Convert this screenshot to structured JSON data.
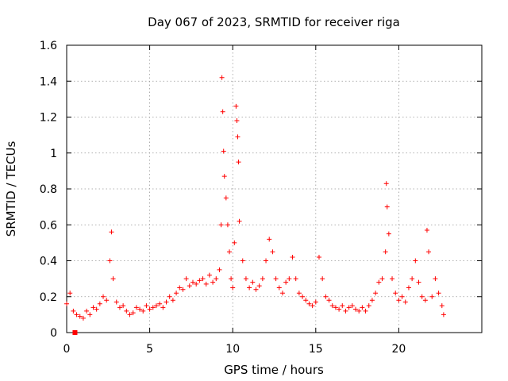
{
  "chart_data": {
    "type": "scatter",
    "title": "Day 067 of 2023, SRMTID for receiver riga",
    "xlabel": "GPS time / hours",
    "ylabel": "SRMTID / TECUs",
    "xlim": [
      0,
      25
    ],
    "ylim": [
      0,
      1.6
    ],
    "xticks": [
      0,
      5,
      10,
      15,
      20
    ],
    "xtick_labels": [
      "0",
      "5",
      "10",
      "15",
      "20"
    ],
    "yticks": [
      0,
      0.2,
      0.4,
      0.6,
      0.8,
      1,
      1.2,
      1.4,
      1.6
    ],
    "ytick_labels": [
      "0",
      "0.2",
      "0.4",
      "0.6",
      "0.8",
      "1",
      "1.2",
      "1.4",
      "1.6"
    ],
    "grid": true,
    "marker": "plus",
    "color": "#ff0000",
    "series": [
      {
        "name": "SRMTID",
        "x": [
          0.0,
          0.2,
          0.4,
          0.6,
          0.8,
          1.0,
          1.2,
          1.4,
          1.6,
          1.8,
          2.0,
          2.2,
          2.4,
          2.6,
          2.7,
          2.8,
          3.0,
          3.2,
          3.4,
          3.6,
          3.8,
          4.0,
          4.2,
          4.4,
          4.6,
          4.8,
          5.0,
          5.2,
          5.4,
          5.6,
          5.8,
          6.0,
          6.2,
          6.4,
          6.6,
          6.8,
          7.0,
          7.2,
          7.4,
          7.6,
          7.8,
          8.0,
          8.2,
          8.4,
          8.6,
          8.8,
          9.0,
          9.2,
          9.3,
          9.35,
          9.4,
          9.45,
          9.5,
          9.6,
          9.7,
          9.8,
          9.9,
          10.0,
          10.1,
          10.2,
          10.25,
          10.3,
          10.35,
          10.4,
          10.6,
          10.8,
          11.0,
          11.2,
          11.4,
          11.6,
          11.8,
          12.0,
          12.2,
          12.4,
          12.6,
          12.8,
          13.0,
          13.2,
          13.4,
          13.6,
          13.8,
          14.0,
          14.2,
          14.4,
          14.6,
          14.8,
          15.0,
          15.2,
          15.4,
          15.6,
          15.8,
          16.0,
          16.2,
          16.4,
          16.6,
          16.8,
          17.0,
          17.2,
          17.4,
          17.6,
          17.8,
          18.0,
          18.2,
          18.4,
          18.6,
          18.8,
          19.0,
          19.2,
          19.25,
          19.3,
          19.4,
          19.6,
          19.8,
          20.0,
          20.2,
          20.4,
          20.6,
          20.8,
          21.0,
          21.2,
          21.4,
          21.6,
          21.7,
          21.8,
          22.0,
          22.2,
          22.4,
          22.6,
          22.7
        ],
        "y": [
          0.16,
          0.22,
          0.12,
          0.1,
          0.09,
          0.08,
          0.12,
          0.1,
          0.14,
          0.13,
          0.16,
          0.2,
          0.18,
          0.4,
          0.56,
          0.3,
          0.17,
          0.14,
          0.15,
          0.12,
          0.1,
          0.11,
          0.14,
          0.13,
          0.12,
          0.15,
          0.13,
          0.14,
          0.15,
          0.16,
          0.14,
          0.17,
          0.2,
          0.18,
          0.22,
          0.25,
          0.24,
          0.3,
          0.26,
          0.28,
          0.27,
          0.29,
          0.3,
          0.27,
          0.32,
          0.28,
          0.3,
          0.35,
          0.6,
          1.42,
          1.23,
          1.01,
          0.87,
          0.75,
          0.6,
          0.45,
          0.3,
          0.25,
          0.5,
          1.26,
          1.18,
          1.09,
          0.95,
          0.62,
          0.4,
          0.3,
          0.25,
          0.28,
          0.24,
          0.26,
          0.3,
          0.4,
          0.52,
          0.45,
          0.3,
          0.25,
          0.22,
          0.28,
          0.3,
          0.42,
          0.3,
          0.22,
          0.2,
          0.18,
          0.16,
          0.15,
          0.17,
          0.42,
          0.3,
          0.2,
          0.18,
          0.15,
          0.14,
          0.13,
          0.15,
          0.12,
          0.14,
          0.15,
          0.13,
          0.12,
          0.14,
          0.12,
          0.15,
          0.18,
          0.22,
          0.28,
          0.3,
          0.45,
          0.83,
          0.7,
          0.55,
          0.3,
          0.22,
          0.18,
          0.2,
          0.17,
          0.25,
          0.3,
          0.4,
          0.28,
          0.2,
          0.18,
          0.57,
          0.45,
          0.2,
          0.3,
          0.22,
          0.15,
          0.1
        ]
      }
    ],
    "special_points": [
      {
        "x": 0.5,
        "y": 0.0,
        "marker": "square"
      }
    ]
  }
}
